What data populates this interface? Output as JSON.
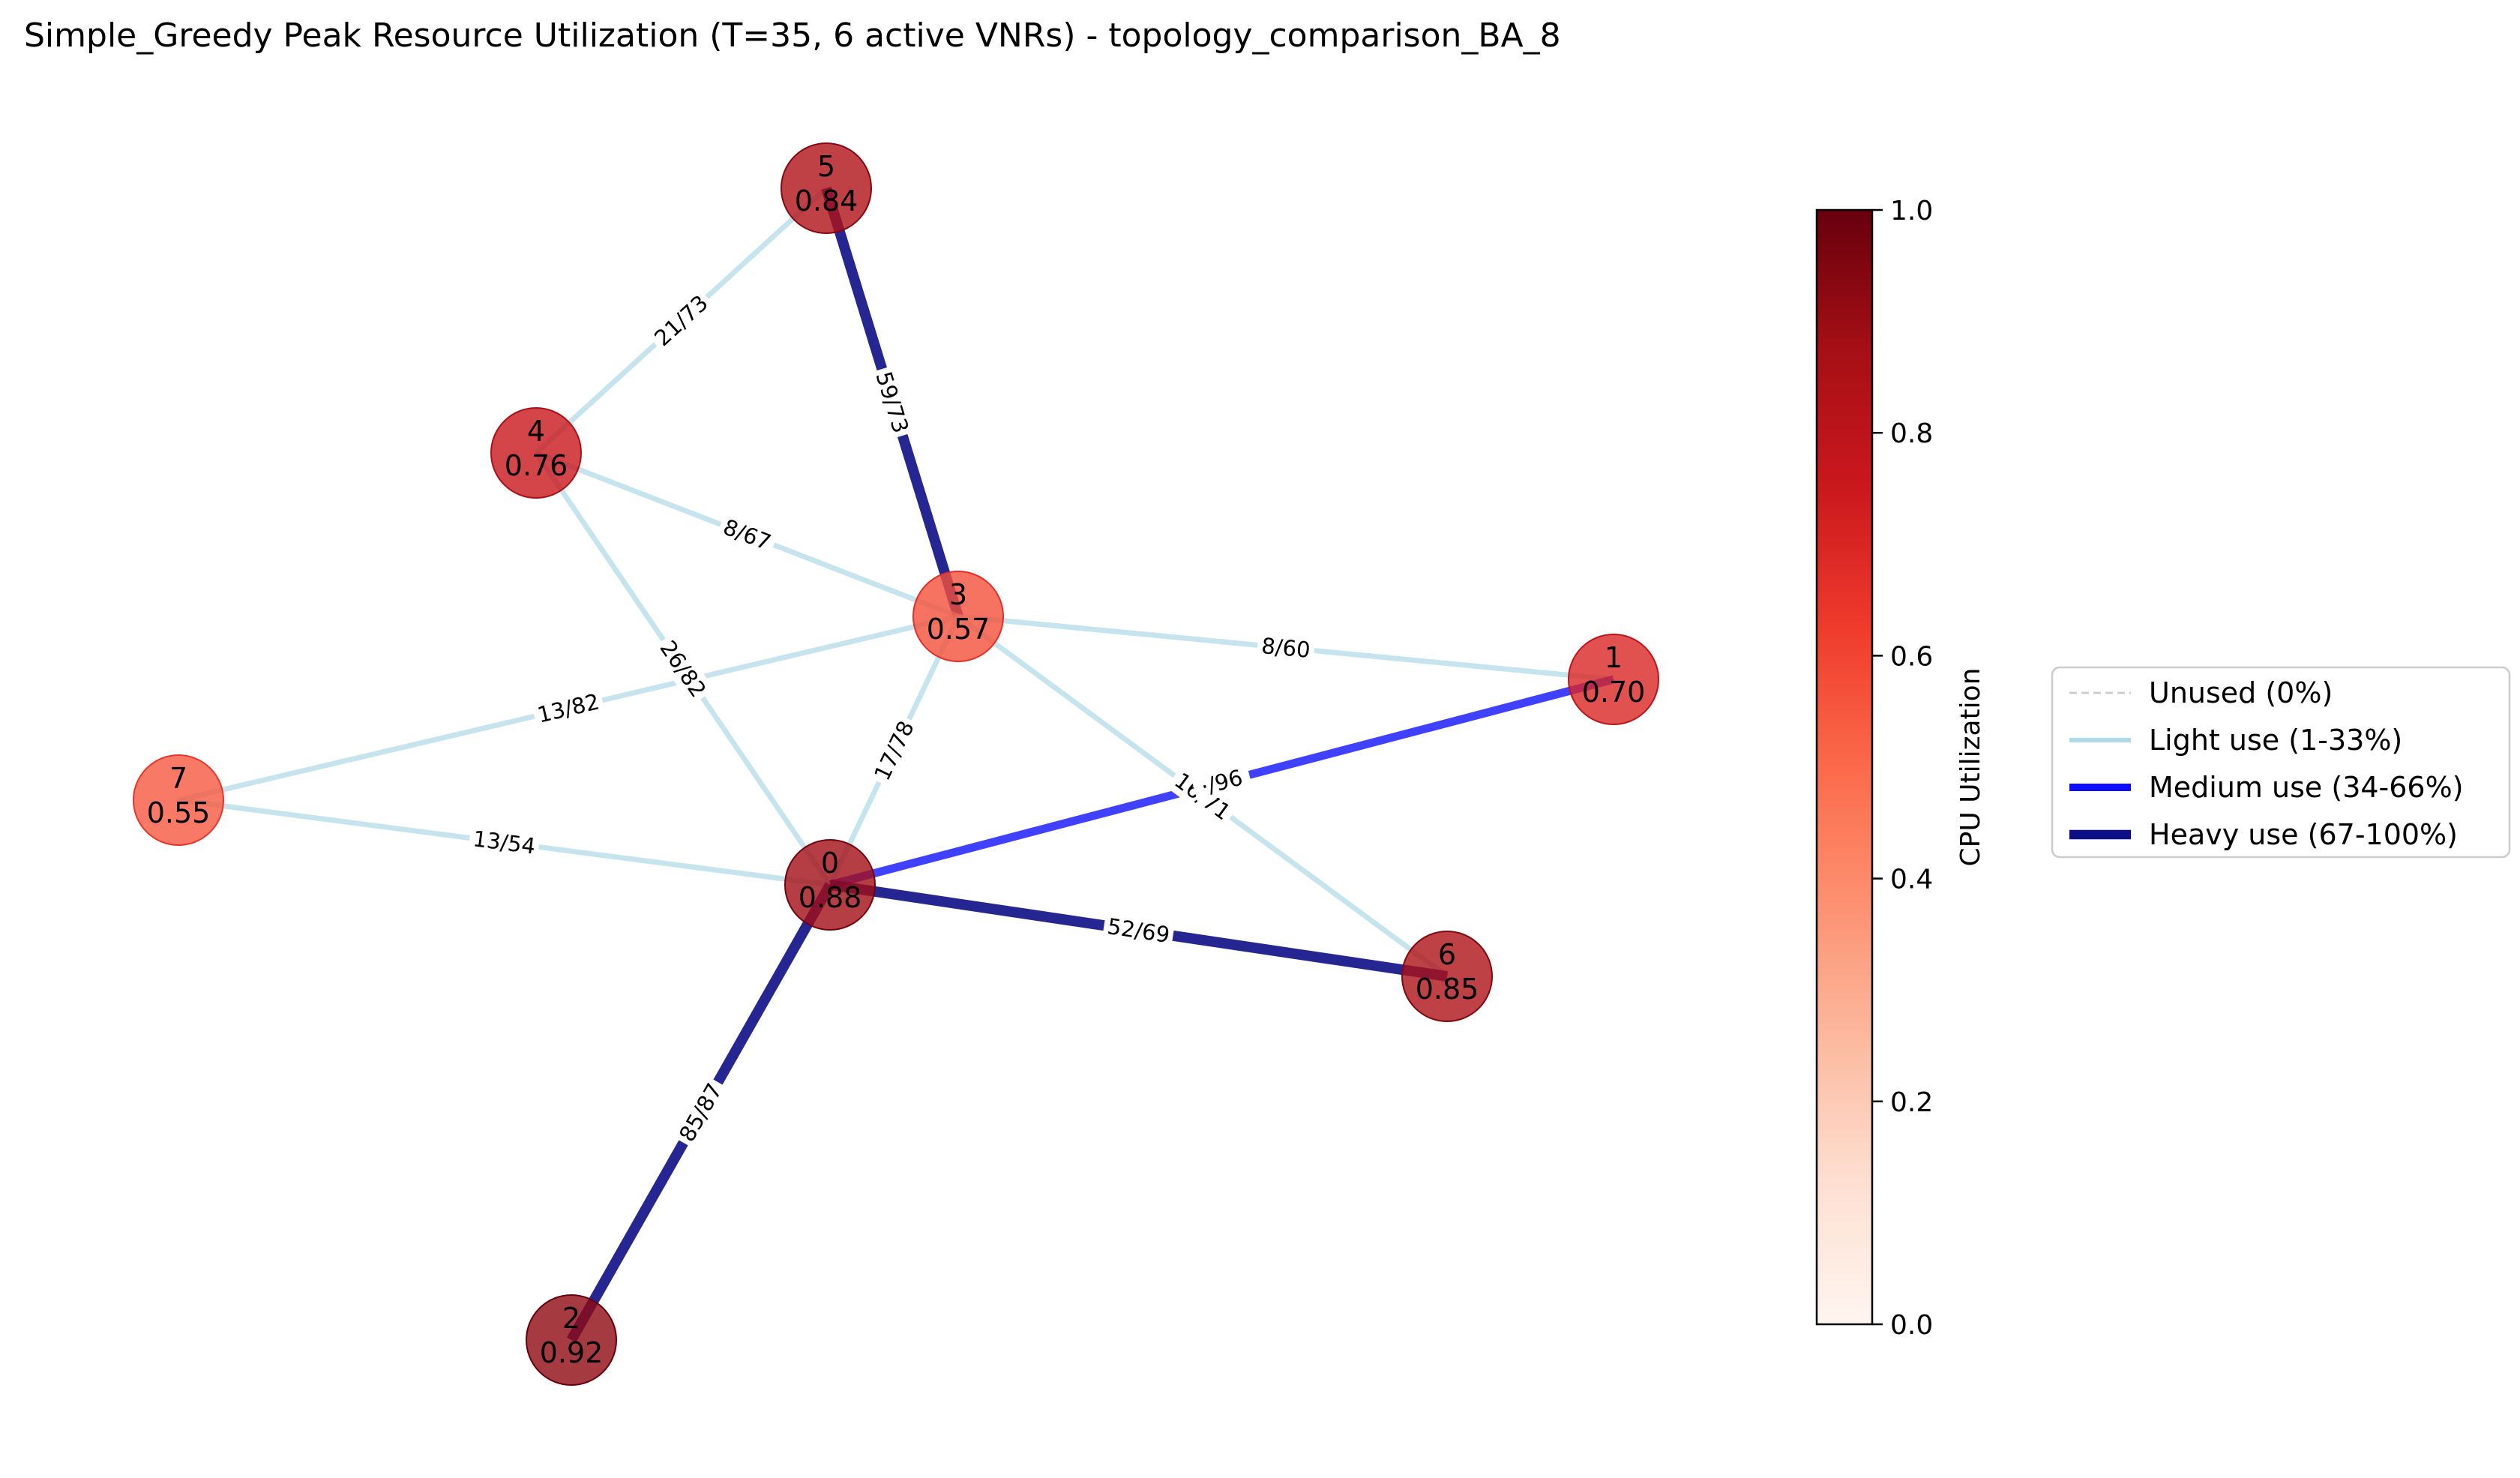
{
  "title": "Simple_Greedy Peak Resource Utilization (T=35, 6 active VNRs) - topology_comparison_BA_8",
  "nodes": [
    {
      "id": "0",
      "value": "0.88",
      "util": 0.88
    },
    {
      "id": "1",
      "value": "0.70",
      "util": 0.7
    },
    {
      "id": "2",
      "value": "0.92",
      "util": 0.92
    },
    {
      "id": "3",
      "value": "0.57",
      "util": 0.57
    },
    {
      "id": "4",
      "value": "0.76",
      "util": 0.76
    },
    {
      "id": "5",
      "value": "0.84",
      "util": 0.84
    },
    {
      "id": "6",
      "value": "0.85",
      "util": 0.85
    },
    {
      "id": "7",
      "value": "0.55",
      "util": 0.55
    }
  ],
  "edges": [
    {
      "source": "5",
      "target": "4",
      "label": "21/73",
      "level": "light"
    },
    {
      "source": "5",
      "target": "3",
      "label": "59/73",
      "level": "heavy"
    },
    {
      "source": "4",
      "target": "3",
      "label": "8/67",
      "level": "light"
    },
    {
      "source": "4",
      "target": "0",
      "label": "26/82",
      "level": "light"
    },
    {
      "source": "3",
      "target": "1",
      "label": "8/60",
      "level": "light"
    },
    {
      "source": "3",
      "target": "7",
      "label": "13/82",
      "level": "light"
    },
    {
      "source": "3",
      "target": "0",
      "label": "17/78",
      "level": "light"
    },
    {
      "source": "3",
      "target": "6",
      "label": "16/71",
      "level": "light"
    },
    {
      "source": "0",
      "target": "1",
      "label": "·/96",
      "level": "medium"
    },
    {
      "source": "7",
      "target": "0",
      "label": "13/54",
      "level": "light"
    },
    {
      "source": "0",
      "target": "6",
      "label": "52/69",
      "level": "heavy"
    },
    {
      "source": "0",
      "target": "2",
      "label": "85/87",
      "level": "heavy"
    }
  ],
  "edge_styles": {
    "unused": {
      "color": "#cccccc"
    },
    "light": {
      "color": "#add8e6"
    },
    "medium": {
      "color": "#0000ff"
    },
    "heavy": {
      "color": "#000080"
    }
  },
  "colorbar": {
    "label": "CPU Utilization",
    "ticks": [
      "0.0",
      "0.2",
      "0.4",
      "0.6",
      "0.8",
      "1.0"
    ],
    "range": [
      0,
      1
    ],
    "colormap": "Reds"
  },
  "legend": {
    "items": [
      {
        "label": "Unused (0%)",
        "style": "unused"
      },
      {
        "label": "Light use (1-33%)",
        "style": "light"
      },
      {
        "label": "Medium use (34-66%)",
        "style": "medium"
      },
      {
        "label": "Heavy use (67-100%)",
        "style": "heavy"
      }
    ]
  }
}
